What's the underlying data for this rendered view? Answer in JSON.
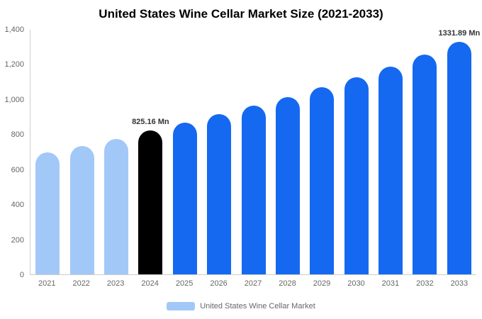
{
  "chart_data": {
    "type": "bar",
    "title": "United States Wine Cellar Market Size (2021-2033)",
    "categories": [
      "2021",
      "2022",
      "2023",
      "2024",
      "2025",
      "2026",
      "2027",
      "2028",
      "2029",
      "2030",
      "2031",
      "2032",
      "2033"
    ],
    "values": [
      700,
      736,
      775,
      825.16,
      870,
      916,
      965,
      1016,
      1070,
      1127,
      1188,
      1258,
      1331.89
    ],
    "unit": "Mn",
    "ylim": [
      0,
      1400
    ],
    "yticks": [
      0,
      200,
      400,
      600,
      800,
      1000,
      1200,
      1400
    ],
    "ytick_labels": [
      "0",
      "200",
      "400",
      "600",
      "800",
      "1,000",
      "1,200",
      "1,400"
    ],
    "bar_colors": [
      "#A2C8F7",
      "#A2C8F7",
      "#A2C8F7",
      "#000000",
      "#1569F0",
      "#1569F0",
      "#1569F0",
      "#1569F0",
      "#1569F0",
      "#1569F0",
      "#1569F0",
      "#1569F0",
      "#1569F0"
    ],
    "data_labels": [
      {
        "index": 3,
        "text": "825.16 Mn"
      },
      {
        "index": 12,
        "text": "1331.89 Mn"
      }
    ],
    "legend": [
      "United States Wine Cellar Market"
    ],
    "legend_color": "#A2C8F7",
    "legend_position": "bottom",
    "grid": false
  },
  "colors": {
    "past_bar": "#A2C8F7",
    "highlight_bar": "#000000",
    "forecast_bar": "#1569F0",
    "axis_line": "#cccccc",
    "axis_text": "#666666",
    "title_text": "#000000",
    "background": "#ffffff"
  }
}
